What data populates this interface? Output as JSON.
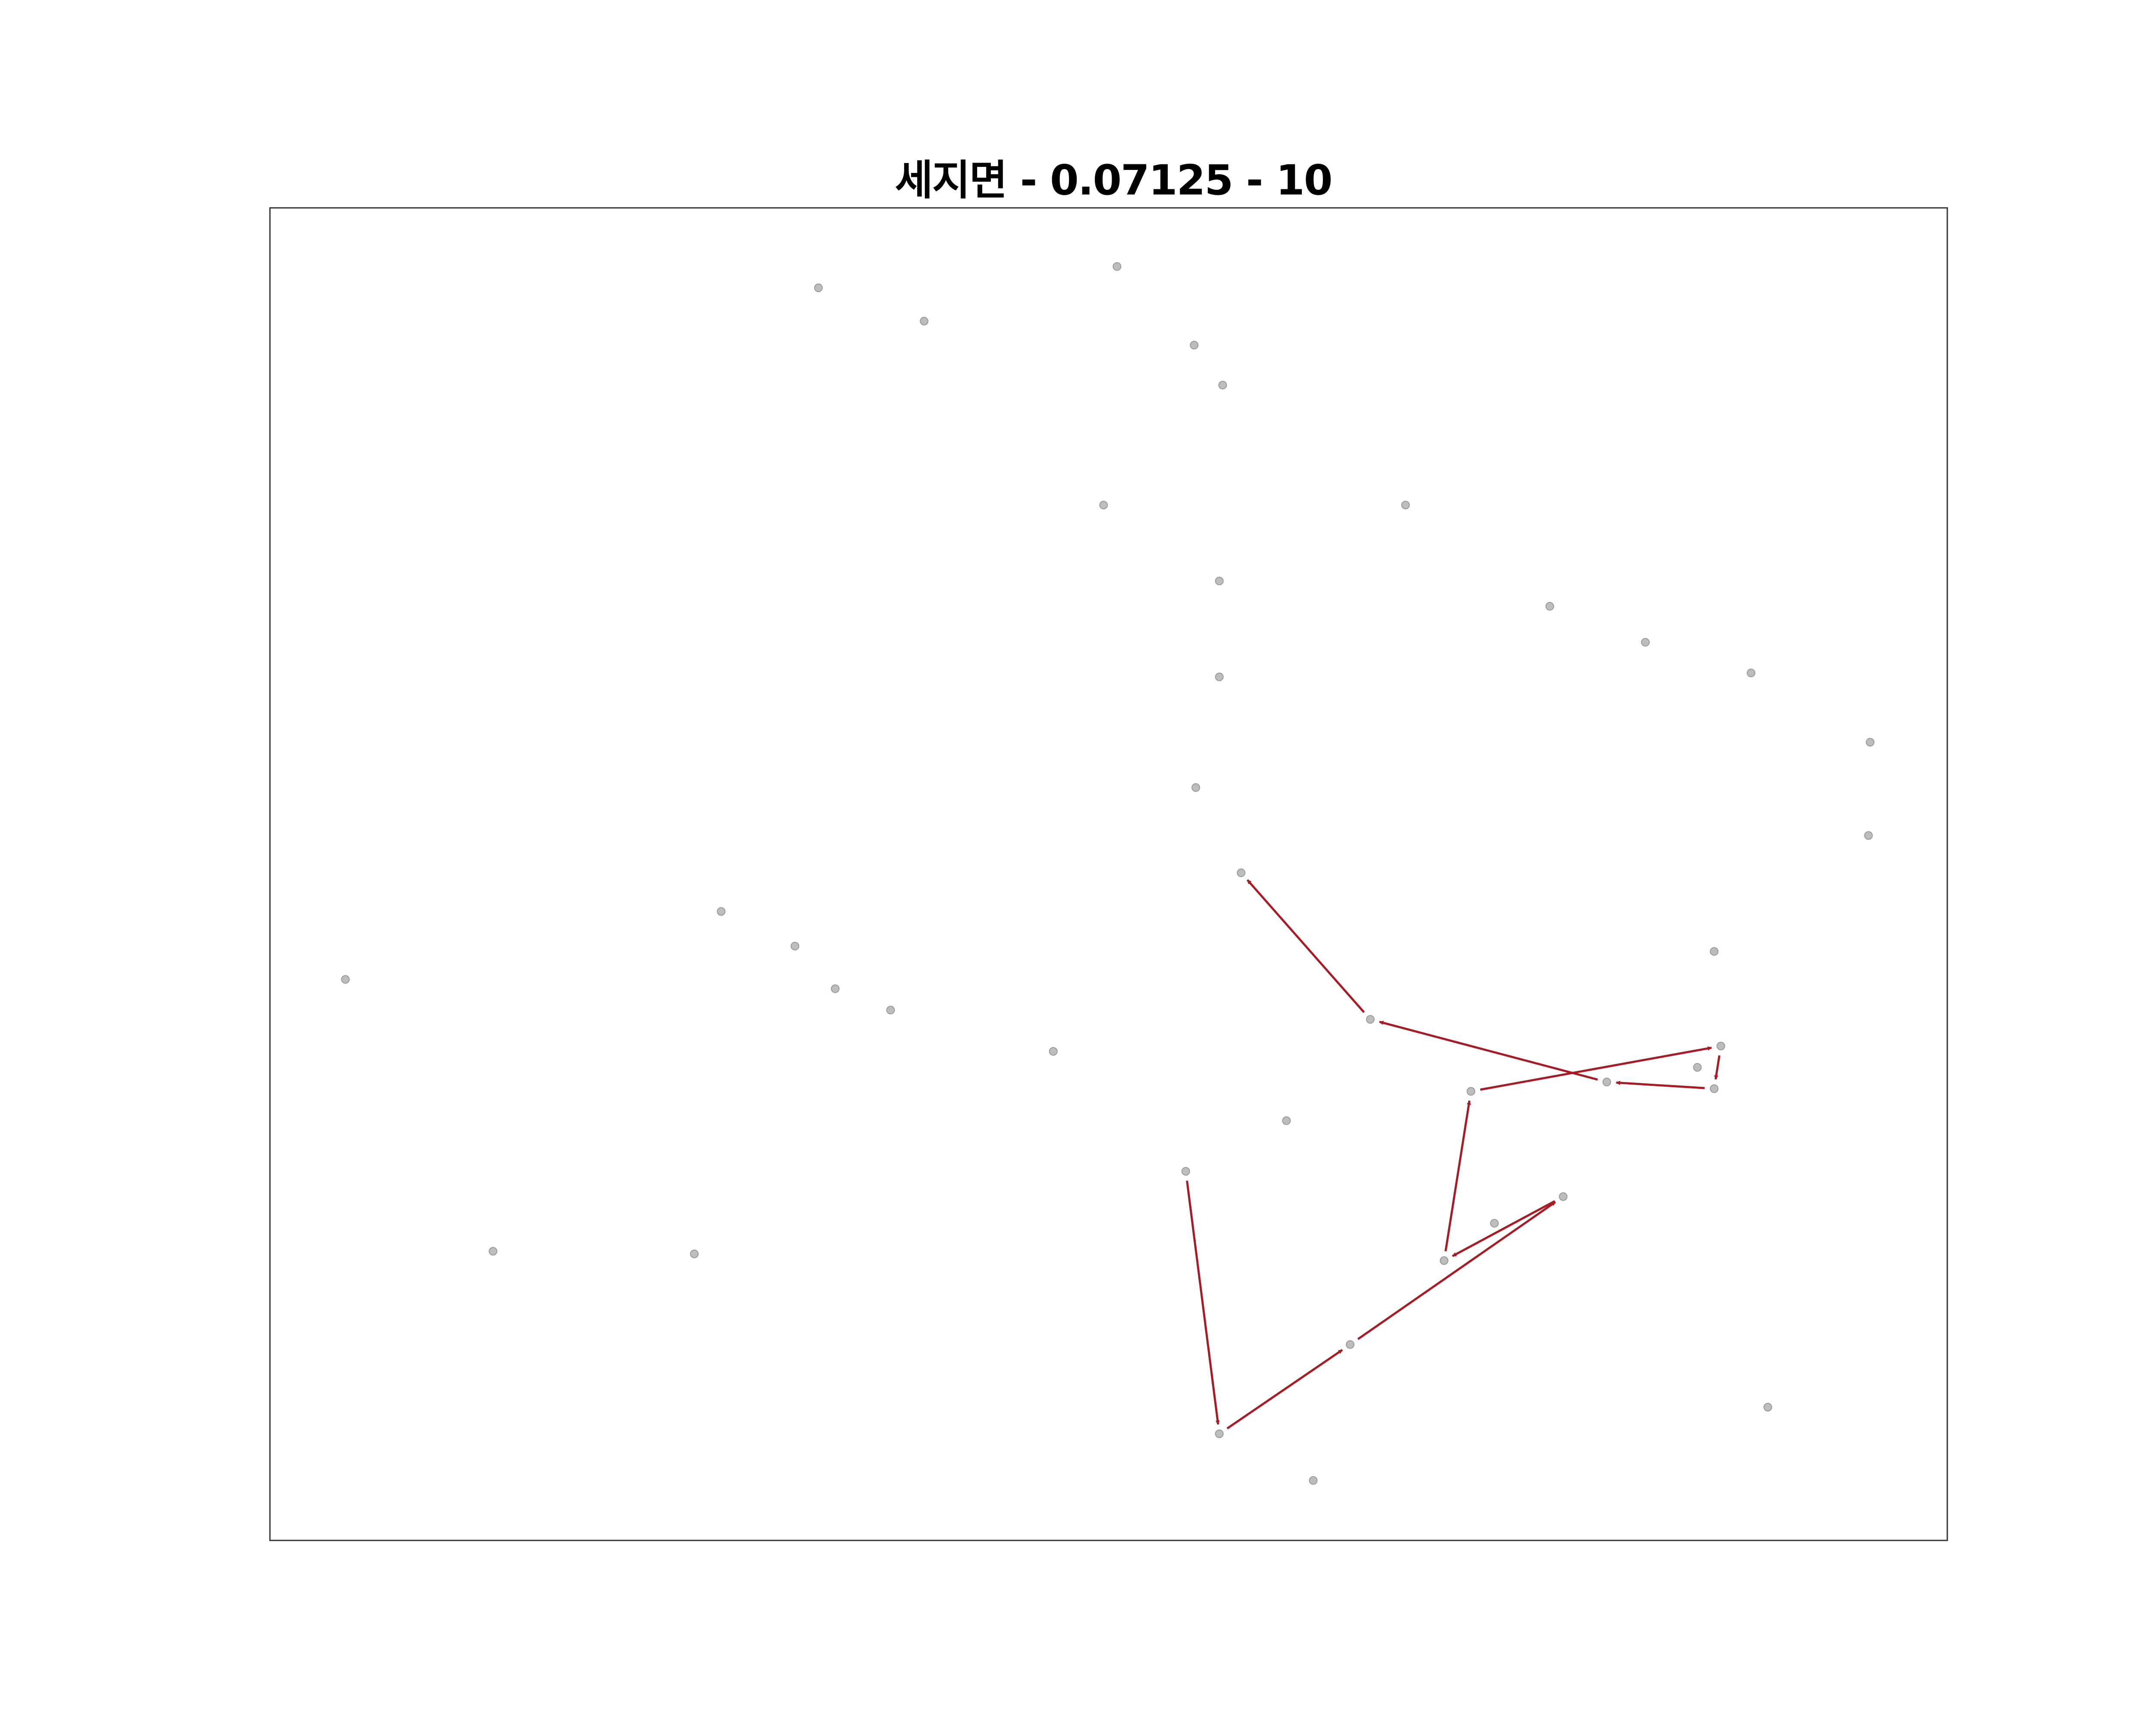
{
  "chart_data": {
    "type": "scatter",
    "title": "세지면 - 0.07125 - 10",
    "xlabel": "",
    "ylabel": "",
    "xlim": [
      0,
      100
    ],
    "ylim": [
      0,
      100
    ],
    "grid": false,
    "axes_ticks": false,
    "colors": {
      "point_fill": "#bdbdbd",
      "point_stroke": "#9a9a9a",
      "arrow": "#a51c24",
      "frame": "#333333"
    },
    "points": [
      {
        "x": 32.7,
        "y": 94.0
      },
      {
        "x": 39.0,
        "y": 91.5
      },
      {
        "x": 50.5,
        "y": 95.6
      },
      {
        "x": 55.1,
        "y": 89.7
      },
      {
        "x": 56.8,
        "y": 86.7
      },
      {
        "x": 49.7,
        "y": 77.7
      },
      {
        "x": 67.7,
        "y": 77.7
      },
      {
        "x": 56.6,
        "y": 72.0
      },
      {
        "x": 76.3,
        "y": 70.1
      },
      {
        "x": 82.0,
        "y": 67.4
      },
      {
        "x": 88.3,
        "y": 65.1
      },
      {
        "x": 56.6,
        "y": 64.8
      },
      {
        "x": 95.4,
        "y": 59.9
      },
      {
        "x": 95.3,
        "y": 52.9
      },
      {
        "x": 55.2,
        "y": 56.5
      },
      {
        "x": 57.9,
        "y": 50.1
      },
      {
        "x": 26.9,
        "y": 47.2
      },
      {
        "x": 31.3,
        "y": 44.6
      },
      {
        "x": 86.1,
        "y": 44.2
      },
      {
        "x": 4.5,
        "y": 42.1
      },
      {
        "x": 33.7,
        "y": 41.4
      },
      {
        "x": 37.0,
        "y": 39.8
      },
      {
        "x": 65.6,
        "y": 39.1
      },
      {
        "x": 46.7,
        "y": 36.7
      },
      {
        "x": 86.5,
        "y": 37.1
      },
      {
        "x": 85.1,
        "y": 35.5
      },
      {
        "x": 79.7,
        "y": 34.4
      },
      {
        "x": 86.1,
        "y": 33.9
      },
      {
        "x": 71.6,
        "y": 33.7
      },
      {
        "x": 60.6,
        "y": 31.5
      },
      {
        "x": 54.6,
        "y": 27.7
      },
      {
        "x": 77.1,
        "y": 25.8
      },
      {
        "x": 73.0,
        "y": 23.8
      },
      {
        "x": 70.0,
        "y": 21.0
      },
      {
        "x": 13.3,
        "y": 21.7
      },
      {
        "x": 25.3,
        "y": 21.5
      },
      {
        "x": 64.4,
        "y": 14.7
      },
      {
        "x": 89.3,
        "y": 10.0
      },
      {
        "x": 56.6,
        "y": 8.0
      },
      {
        "x": 62.2,
        "y": 4.5
      }
    ],
    "path": [
      {
        "x": 54.6,
        "y": 27.7
      },
      {
        "x": 56.6,
        "y": 8.0
      },
      {
        "x": 64.4,
        "y": 14.7
      },
      {
        "x": 77.1,
        "y": 25.8
      },
      {
        "x": 70.0,
        "y": 21.0
      },
      {
        "x": 71.6,
        "y": 33.7
      },
      {
        "x": 86.5,
        "y": 37.1
      },
      {
        "x": 86.1,
        "y": 33.9
      },
      {
        "x": 79.7,
        "y": 34.4
      },
      {
        "x": 65.6,
        "y": 39.1
      },
      {
        "x": 57.9,
        "y": 50.1
      }
    ]
  }
}
